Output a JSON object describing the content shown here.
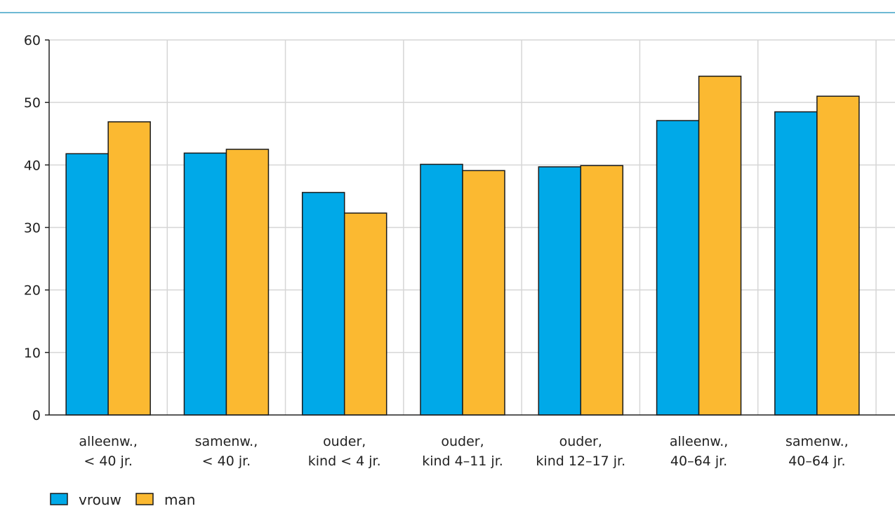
{
  "chart_data": {
    "type": "bar",
    "categories": [
      [
        "alleenw.,",
        "< 40 jr."
      ],
      [
        "samenw.,",
        "< 40 jr."
      ],
      [
        "ouder,",
        "kind < 4 jr."
      ],
      [
        "ouder,",
        "kind 4–11 jr."
      ],
      [
        "ouder,",
        "kind 12–17 jr."
      ],
      [
        "alleenw.,",
        "40–64 jr."
      ],
      [
        "samenw.,",
        "40–64 jr."
      ]
    ],
    "series": [
      {
        "name": "vrouw",
        "color": "#00a9e8",
        "values": [
          41.8,
          41.9,
          35.6,
          40.1,
          39.7,
          47.1,
          48.5
        ]
      },
      {
        "name": "man",
        "color": "#fbb931",
        "values": [
          46.9,
          42.5,
          32.3,
          39.1,
          39.9,
          54.2,
          51.0
        ]
      }
    ],
    "yticks": [
      "0",
      "10",
      "20",
      "30",
      "40",
      "50",
      "60"
    ],
    "ylim": [
      0,
      60
    ],
    "grid": true,
    "legend_position": "bottom-left",
    "top_rule_color": "#3ea2c6"
  }
}
